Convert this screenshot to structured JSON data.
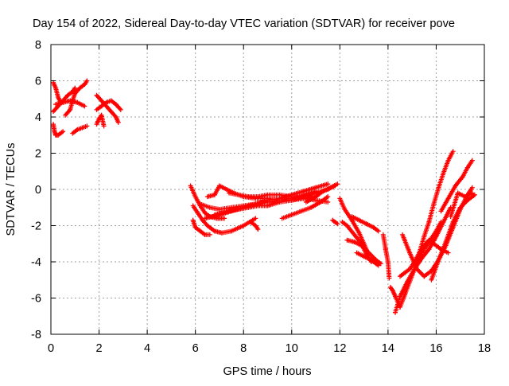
{
  "chart_data": {
    "type": "scatter",
    "title": "Day 154 of 2022, Sidereal Day-to-day VTEC variation (SDTVAR) for receiver pove",
    "xlabel": "GPS time / hours",
    "ylabel": "SDTVAR / TECUs",
    "xlim": [
      0,
      18
    ],
    "ylim": [
      -8,
      8
    ],
    "xticks": [
      "0",
      "2",
      "4",
      "6",
      "8",
      "10",
      "12",
      "14",
      "16",
      "18"
    ],
    "yticks": [
      "8",
      "6",
      "4",
      "2",
      "0",
      "-2",
      "-4",
      "-6",
      "-8"
    ],
    "grid": true,
    "marker": "+",
    "series_color": "#ff0000",
    "segments": [
      {
        "x": [
          0.1,
          0.2,
          0.3,
          0.4
        ],
        "y": [
          5.9,
          5.6,
          5.1,
          4.8
        ]
      },
      {
        "x": [
          0.1,
          0.15,
          0.2,
          0.3,
          0.4,
          0.5
        ],
        "y": [
          3.6,
          3.2,
          3.0,
          3.0,
          3.1,
          3.2
        ]
      },
      {
        "x": [
          0.1,
          0.3,
          0.5,
          0.7,
          0.9,
          1.0
        ],
        "y": [
          4.3,
          4.6,
          4.9,
          5.2,
          5.4,
          5.6
        ]
      },
      {
        "x": [
          0.2,
          0.5,
          0.8,
          1.1,
          1.4
        ],
        "y": [
          4.7,
          4.8,
          4.9,
          4.8,
          4.6
        ]
      },
      {
        "x": [
          0.6,
          0.8,
          0.9,
          1.0,
          1.2,
          1.4,
          1.5
        ],
        "y": [
          4.1,
          4.4,
          4.9,
          5.3,
          5.6,
          5.8,
          6.0
        ]
      },
      {
        "x": [
          0.9,
          1.1,
          1.3,
          1.5
        ],
        "y": [
          3.1,
          3.3,
          3.4,
          3.5
        ]
      },
      {
        "x": [
          1.9,
          2.1,
          2.3,
          2.5,
          2.7,
          2.8
        ],
        "y": [
          5.2,
          4.9,
          4.6,
          4.3,
          4.0,
          3.7
        ]
      },
      {
        "x": [
          1.9,
          2.1,
          2.3,
          2.5,
          2.7,
          2.9
        ],
        "y": [
          4.4,
          4.6,
          4.8,
          4.9,
          4.7,
          4.4
        ]
      },
      {
        "x": [
          1.9,
          2.0,
          2.1,
          2.2
        ],
        "y": [
          3.6,
          3.9,
          4.1,
          3.5
        ]
      },
      {
        "x": [
          5.8,
          6.0,
          6.2,
          6.4,
          6.6,
          6.9,
          7.2
        ],
        "y": [
          0.2,
          -0.4,
          -0.9,
          -1.3,
          -1.5,
          -1.6,
          -1.6
        ]
      },
      {
        "x": [
          5.9,
          6.1,
          6.3,
          6.5,
          6.8,
          7.1,
          7.5,
          8.0,
          8.5
        ],
        "y": [
          -0.9,
          -1.3,
          -1.7,
          -2.0,
          -2.3,
          -2.4,
          -2.3,
          -2.0,
          -1.6
        ]
      },
      {
        "x": [
          5.9,
          6.0,
          6.2,
          6.4,
          6.6
        ],
        "y": [
          -1.7,
          -2.1,
          -2.3,
          -2.5,
          -2.5
        ]
      },
      {
        "x": [
          6.2,
          6.6,
          7.0,
          7.5,
          8.0,
          8.5,
          9.0,
          9.5,
          10.0,
          10.5,
          11.0
        ],
        "y": [
          -0.8,
          -1.0,
          -1.1,
          -1.0,
          -0.9,
          -0.8,
          -0.7,
          -0.6,
          -0.5,
          -0.3,
          -0.1
        ]
      },
      {
        "x": [
          6.4,
          6.7,
          7.0,
          7.5,
          8.0,
          8.5,
          9.0,
          9.5,
          10.0,
          10.5,
          11.0,
          11.5
        ],
        "y": [
          -1.6,
          -1.5,
          -1.4,
          -1.2,
          -1.0,
          -0.8,
          -0.6,
          -0.5,
          -0.3,
          -0.1,
          0.1,
          0.3
        ]
      },
      {
        "x": [
          6.8,
          7.1,
          7.4,
          7.8,
          8.2,
          8.6,
          9.0,
          9.5,
          10.0,
          10.5,
          11.0,
          11.5,
          11.8
        ],
        "y": [
          -1.4,
          -1.3,
          -1.2,
          -1.1,
          -1.0,
          -0.9,
          -0.9,
          -0.7,
          -0.6,
          -0.4,
          -0.2,
          0.0,
          0.2
        ]
      },
      {
        "x": [
          6.5,
          6.8,
          7.0,
          7.3,
          7.6,
          8.0,
          8.5,
          9.0,
          9.5,
          10.0,
          10.5,
          11.0
        ],
        "y": [
          -0.4,
          -0.3,
          0.2,
          0.0,
          -0.2,
          -0.4,
          -0.5,
          -0.5,
          -0.6,
          -0.6,
          -0.5,
          -0.4
        ]
      },
      {
        "x": [
          7.4,
          7.8,
          8.2,
          8.6,
          9.0,
          9.5,
          10.0,
          10.5,
          11.0,
          11.5
        ],
        "y": [
          -0.2,
          -0.3,
          -0.4,
          -0.4,
          -0.3,
          -0.3,
          -0.4,
          -0.5,
          -0.6,
          -0.7
        ]
      },
      {
        "x": [
          9.6,
          10.0,
          10.4,
          10.8,
          11.2,
          11.5
        ],
        "y": [
          -1.6,
          -1.4,
          -1.2,
          -1.0,
          -0.7,
          -0.4
        ]
      },
      {
        "x": [
          10.6,
          11.0,
          11.3,
          11.6,
          11.9
        ],
        "y": [
          -0.7,
          -0.4,
          -0.1,
          0.1,
          0.3
        ]
      },
      {
        "x": [
          8.3,
          8.5,
          8.6
        ],
        "y": [
          -1.8,
          -2.0,
          -2.2
        ]
      },
      {
        "x": [
          11.7,
          11.9
        ],
        "y": [
          -1.7,
          -1.9
        ]
      },
      {
        "x": [
          12.0,
          12.2,
          12.5,
          12.8,
          13.0,
          13.2
        ],
        "y": [
          -0.5,
          -1.1,
          -1.7,
          -2.4,
          -3.0,
          -3.6
        ]
      },
      {
        "x": [
          12.1,
          12.3,
          12.6,
          12.9,
          13.1,
          13.3
        ],
        "y": [
          -1.8,
          -2.0,
          -2.5,
          -3.0,
          -3.6,
          -4.0
        ]
      },
      {
        "x": [
          12.3,
          12.6,
          12.9,
          13.2,
          13.5,
          13.7
        ],
        "y": [
          -2.8,
          -2.9,
          -3.1,
          -3.5,
          -3.9,
          -4.1
        ]
      },
      {
        "x": [
          12.5,
          12.8,
          13.1,
          13.4,
          13.6
        ],
        "y": [
          -1.5,
          -1.7,
          -1.9,
          -2.1,
          -2.3
        ]
      },
      {
        "x": [
          12.7,
          13.0,
          13.3,
          13.6
        ],
        "y": [
          -3.5,
          -3.7,
          -3.9,
          -4.2
        ]
      },
      {
        "x": [
          13.8,
          13.9,
          14.0,
          14.05
        ],
        "y": [
          -2.5,
          -3.3,
          -4.0,
          -4.9
        ]
      },
      {
        "x": [
          14.1,
          14.2,
          14.3,
          14.5,
          14.7,
          14.9,
          15.1,
          15.3,
          15.5,
          15.7,
          15.9,
          16.1,
          16.3,
          16.5,
          16.7
        ],
        "y": [
          -5.4,
          -5.6,
          -5.9,
          -6.5,
          -5.8,
          -5.1,
          -4.4,
          -3.5,
          -2.6,
          -1.8,
          -0.8,
          0.1,
          0.9,
          1.6,
          2.1
        ]
      },
      {
        "x": [
          14.3,
          14.5,
          14.8,
          15.1,
          15.4,
          15.7,
          16.0,
          16.3,
          16.6
        ],
        "y": [
          -6.8,
          -5.9,
          -5.1,
          -4.4,
          -3.8,
          -3.3,
          -2.6,
          -1.8,
          -1.0
        ]
      },
      {
        "x": [
          14.6,
          14.9,
          15.2,
          15.5,
          15.8,
          16.1,
          16.4,
          16.7,
          17.0,
          17.3,
          17.5
        ],
        "y": [
          -2.5,
          -3.5,
          -4.4,
          -4.8,
          -4.5,
          -3.9,
          -3.1,
          -2.1,
          -1.1,
          -0.3,
          0.1
        ]
      },
      {
        "x": [
          14.5,
          14.7,
          14.9,
          15.1,
          15.3,
          15.5,
          15.7,
          15.9,
          16.2,
          16.5
        ],
        "y": [
          -4.8,
          -4.6,
          -4.4,
          -4.0,
          -3.5,
          -3.1,
          -2.8,
          -3.0,
          -3.3,
          -3.5
        ]
      },
      {
        "x": [
          15.2,
          15.4,
          15.6,
          15.8,
          16.0,
          16.2
        ],
        "y": [
          -4.0,
          -3.5,
          -3.1,
          -2.7,
          -2.3,
          -1.8
        ]
      },
      {
        "x": [
          15.8,
          16.1,
          16.4,
          16.7,
          17.0,
          17.3,
          17.6
        ],
        "y": [
          -5.0,
          -3.9,
          -2.9,
          -1.8,
          -1.0,
          -0.6,
          -0.3
        ]
      },
      {
        "x": [
          16.2,
          16.5,
          16.8,
          17.1,
          17.3,
          17.5
        ],
        "y": [
          -1.2,
          -0.5,
          0.2,
          0.7,
          1.2,
          1.6
        ]
      },
      {
        "x": [
          16.6,
          16.9,
          17.2,
          17.5
        ],
        "y": [
          -1.5,
          -0.2,
          -0.4,
          -0.2
        ]
      }
    ]
  }
}
